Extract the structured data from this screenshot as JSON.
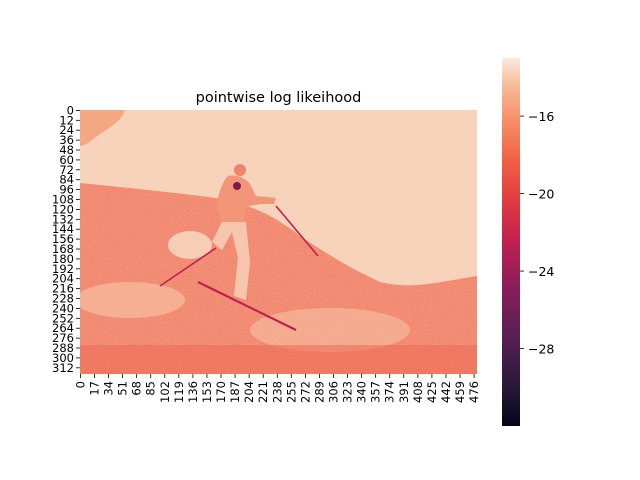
{
  "chart_data": {
    "type": "heatmap",
    "title": "pointwise log likeihood",
    "xlabel": "",
    "ylabel": "",
    "x_tick_labels": [
      "0",
      "17",
      "34",
      "51",
      "68",
      "85",
      "102",
      "119",
      "136",
      "153",
      "170",
      "187",
      "204",
      "221",
      "238",
      "255",
      "272",
      "289",
      "306",
      "323",
      "340",
      "357",
      "374",
      "391",
      "408",
      "425",
      "442",
      "459",
      "476"
    ],
    "y_tick_labels": [
      "0",
      "12",
      "24",
      "36",
      "48",
      "60",
      "72",
      "84",
      "96",
      "108",
      "120",
      "132",
      "144",
      "156",
      "168",
      "180",
      "192",
      "204",
      "216",
      "228",
      "240",
      "252",
      "264",
      "276",
      "288",
      "300",
      "312"
    ],
    "xlim": [
      0,
      480
    ],
    "ylim": [
      0,
      320
    ],
    "colorbar": {
      "colormap": "rocket",
      "range": [
        -32,
        -13
      ],
      "tick_values": [
        -16,
        -20,
        -24,
        -28
      ],
      "tick_labels": [
        "−16",
        "−20",
        "−24",
        "−28"
      ]
    },
    "description_regions": {
      "sky_value_approx": -14,
      "slope_value_approx": -18,
      "snow_surface_value_approx": -16
    }
  }
}
